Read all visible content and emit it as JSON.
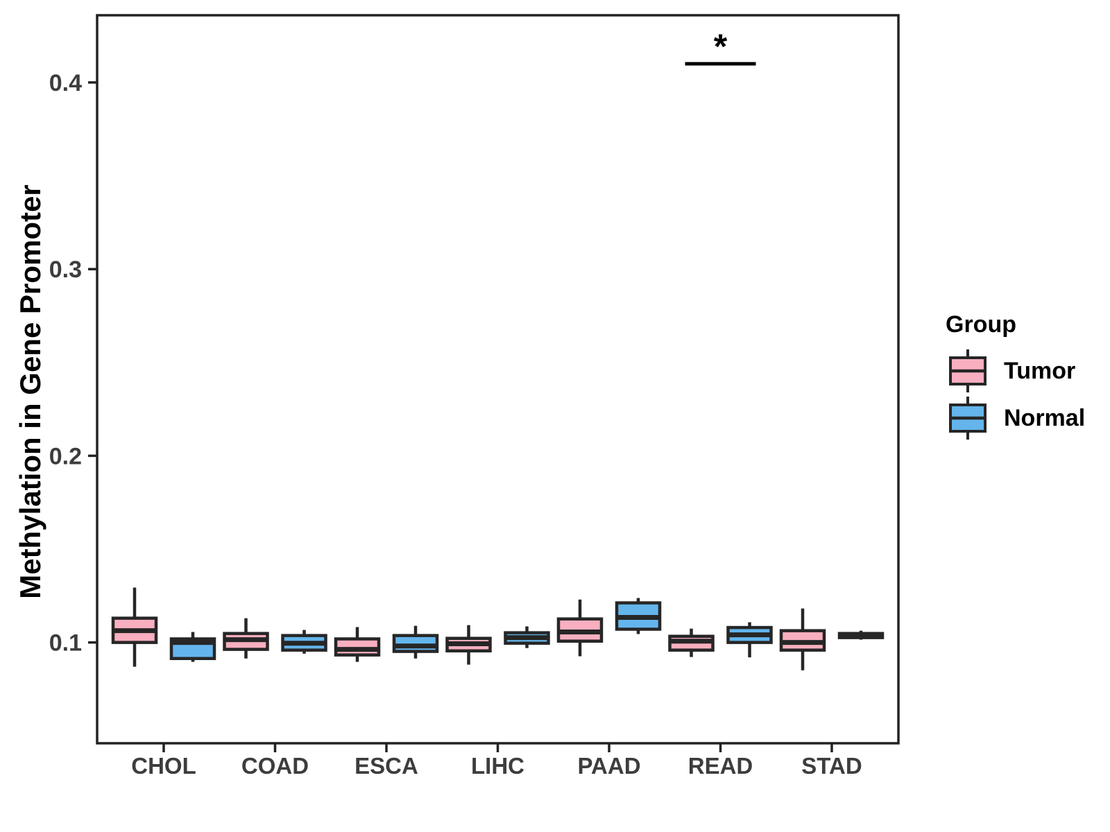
{
  "figure": {
    "background": "#ffffff",
    "legend": {
      "title": "Group",
      "items": [
        {
          "label": "Tumor",
          "color": "#f9afbf"
        },
        {
          "label": "Normal",
          "color": "#64b5ec"
        }
      ]
    }
  },
  "chart_data": {
    "type": "grouped_boxplot",
    "title": "",
    "ylabel": "Methylation in Gene Promoter",
    "xlabel": "",
    "grid": false,
    "legend_position": "right",
    "ylim": [
      0.046,
      0.436
    ],
    "yticks": [
      0.1,
      0.2,
      0.3,
      0.4
    ],
    "categories": [
      "CHOL",
      "COAD",
      "ESCA",
      "LIHC",
      "PAAD",
      "READ",
      "STAD"
    ],
    "groups": [
      "Tumor",
      "Normal"
    ],
    "series": [
      {
        "name": "Tumor",
        "color": "#f9afbf",
        "boxes": [
          {
            "category": "CHOL",
            "whislo": 0.087,
            "q1": 0.1,
            "median": 0.1063,
            "q3": 0.113,
            "whishi": 0.1294
          },
          {
            "category": "COAD",
            "whislo": 0.0914,
            "q1": 0.0963,
            "median": 0.1015,
            "q3": 0.1048,
            "whishi": 0.113
          },
          {
            "category": "ESCA",
            "whislo": 0.0896,
            "q1": 0.0933,
            "median": 0.0963,
            "q3": 0.1019,
            "whishi": 0.1082
          },
          {
            "category": "LIHC",
            "whislo": 0.0881,
            "q1": 0.0955,
            "median": 0.0993,
            "q3": 0.1022,
            "whishi": 0.1093
          },
          {
            "category": "PAAD",
            "whislo": 0.0926,
            "q1": 0.1007,
            "median": 0.1056,
            "q3": 0.1126,
            "whishi": 0.123
          },
          {
            "category": "READ",
            "whislo": 0.0922,
            "q1": 0.0959,
            "median": 0.1007,
            "q3": 0.1033,
            "whishi": 0.1074
          },
          {
            "category": "STAD",
            "whislo": 0.0851,
            "q1": 0.0959,
            "median": 0.1,
            "q3": 0.1063,
            "whishi": 0.1182
          }
        ]
      },
      {
        "name": "Normal",
        "color": "#64b5ec",
        "boxes": [
          {
            "category": "CHOL",
            "whislo": 0.0896,
            "q1": 0.0914,
            "median": 0.1,
            "q3": 0.1019,
            "whishi": 0.1056
          },
          {
            "category": "COAD",
            "whislo": 0.094,
            "q1": 0.0959,
            "median": 0.0996,
            "q3": 0.1037,
            "whishi": 0.1067
          },
          {
            "category": "ESCA",
            "whislo": 0.0914,
            "q1": 0.0952,
            "median": 0.0981,
            "q3": 0.1037,
            "whishi": 0.1089
          },
          {
            "category": "LIHC",
            "whislo": 0.097,
            "q1": 0.0996,
            "median": 0.1026,
            "q3": 0.1052,
            "whishi": 0.1086
          },
          {
            "category": "PAAD",
            "whislo": 0.1045,
            "q1": 0.1071,
            "median": 0.1134,
            "q3": 0.1212,
            "whishi": 0.1238
          },
          {
            "category": "READ",
            "whislo": 0.092,
            "q1": 0.1,
            "median": 0.1041,
            "q3": 0.108,
            "whishi": 0.1108
          },
          {
            "category": "STAD",
            "whislo": 0.1015,
            "q1": 0.1026,
            "median": 0.1037,
            "q3": 0.1048,
            "whishi": 0.1063
          }
        ]
      }
    ],
    "annotations": [
      {
        "category": "READ",
        "label": "*",
        "bar_y": 0.41
      }
    ],
    "style_colors": {
      "box_stroke": "#262626",
      "axis_line": "#222222",
      "tick_label": "#3d3d3d",
      "annotation": "#000000"
    }
  }
}
